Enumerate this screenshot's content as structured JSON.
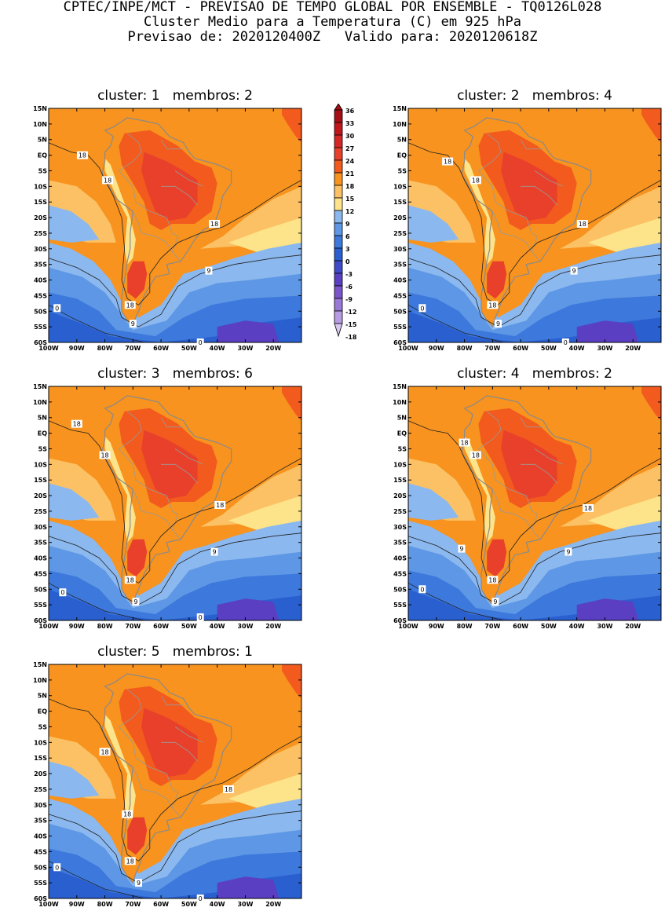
{
  "header": {
    "line1": "CPTEC/INPE/MCT - PREVISAO DE TEMPO GLOBAL POR ENSEMBLE - TQ0126L028",
    "line2": "Cluster Medio para a Temperatura (C) em 925 hPa",
    "line3": "Previsao de: 2020120400Z   Valido para: 2020120618Z"
  },
  "axes": {
    "lat_ticks": [
      "15N",
      "10N",
      "5N",
      "EQ",
      "5S",
      "10S",
      "15S",
      "20S",
      "25S",
      "30S",
      "35S",
      "40S",
      "45S",
      "50S",
      "55S",
      "60S"
    ],
    "lon_ticks": [
      "100W",
      "90W",
      "80W",
      "70W",
      "60W",
      "50W",
      "40W",
      "30W",
      "20W"
    ]
  },
  "colorbar": {
    "levels": [
      "36",
      "33",
      "30",
      "27",
      "24",
      "21",
      "18",
      "15",
      "12",
      "9",
      "6",
      "3",
      "0",
      "-3",
      "-6",
      "-9",
      "-12",
      "-15",
      "-18"
    ],
    "colors": [
      "#a50f15",
      "#c0161c",
      "#d62727",
      "#e8402a",
      "#f25a1e",
      "#f7931e",
      "#fcc164",
      "#fde48a",
      "#8bb8ee",
      "#5d97e5",
      "#3d78dc",
      "#2a5fcf",
      "#3f4bc8",
      "#5a3fc2",
      "#7a55cb",
      "#9a78d8",
      "#b79ce3",
      "#d8c8f0"
    ]
  },
  "panels": [
    {
      "title": "cluster: 1   membros: 2",
      "labels": [
        {
          "text": "18",
          "lon": -88,
          "lat": 0
        },
        {
          "text": "18",
          "lon": -79,
          "lat": -8
        },
        {
          "text": "18",
          "lon": -41,
          "lat": -22
        },
        {
          "text": "9",
          "lon": -43,
          "lat": -37
        },
        {
          "text": "18",
          "lon": -71,
          "lat": -48
        },
        {
          "text": "9",
          "lon": -70,
          "lat": -54
        },
        {
          "text": "0",
          "lon": -97,
          "lat": -49
        },
        {
          "text": "0",
          "lon": -46,
          "lat": -60
        }
      ]
    },
    {
      "title": "cluster: 2   membros: 4",
      "labels": [
        {
          "text": "18",
          "lon": -86,
          "lat": -2
        },
        {
          "text": "18",
          "lon": -76,
          "lat": -8
        },
        {
          "text": "18",
          "lon": -38,
          "lat": -22
        },
        {
          "text": "9",
          "lon": -41,
          "lat": -37
        },
        {
          "text": "18",
          "lon": -70,
          "lat": -48
        },
        {
          "text": "9",
          "lon": -68,
          "lat": -54
        },
        {
          "text": "0",
          "lon": -95,
          "lat": -49
        },
        {
          "text": "0",
          "lon": -44,
          "lat": -60
        }
      ]
    },
    {
      "title": "cluster: 3   membros: 6",
      "labels": [
        {
          "text": "18",
          "lon": -90,
          "lat": 3
        },
        {
          "text": "18",
          "lon": -80,
          "lat": -7
        },
        {
          "text": "18",
          "lon": -39,
          "lat": -23
        },
        {
          "text": "9",
          "lon": -41,
          "lat": -38
        },
        {
          "text": "18",
          "lon": -71,
          "lat": -47
        },
        {
          "text": "9",
          "lon": -69,
          "lat": -54
        },
        {
          "text": "0",
          "lon": -95,
          "lat": -51
        },
        {
          "text": "0",
          "lon": -46,
          "lat": -59
        }
      ]
    },
    {
      "title": "cluster: 4   membros: 2",
      "labels": [
        {
          "text": "18",
          "lon": -80,
          "lat": -3
        },
        {
          "text": "18",
          "lon": -76,
          "lat": -7
        },
        {
          "text": "18",
          "lon": -36,
          "lat": -24
        },
        {
          "text": "9",
          "lon": -81,
          "lat": -37
        },
        {
          "text": "9",
          "lon": -43,
          "lat": -38
        },
        {
          "text": "18",
          "lon": -70,
          "lat": -47
        },
        {
          "text": "9",
          "lon": -69,
          "lat": -54
        },
        {
          "text": "0",
          "lon": -95,
          "lat": -50
        }
      ]
    },
    {
      "title": "cluster: 5   membros: 1",
      "labels": [
        {
          "text": "18",
          "lon": -80,
          "lat": -13
        },
        {
          "text": "18",
          "lon": -36,
          "lat": -25
        },
        {
          "text": "18",
          "lon": -72,
          "lat": -33
        },
        {
          "text": "18",
          "lon": -71,
          "lat": -48
        },
        {
          "text": "9",
          "lon": -68,
          "lat": -55
        },
        {
          "text": "0",
          "lon": -97,
          "lat": -50
        },
        {
          "text": "0",
          "lon": -46,
          "lat": -60
        }
      ]
    }
  ]
}
